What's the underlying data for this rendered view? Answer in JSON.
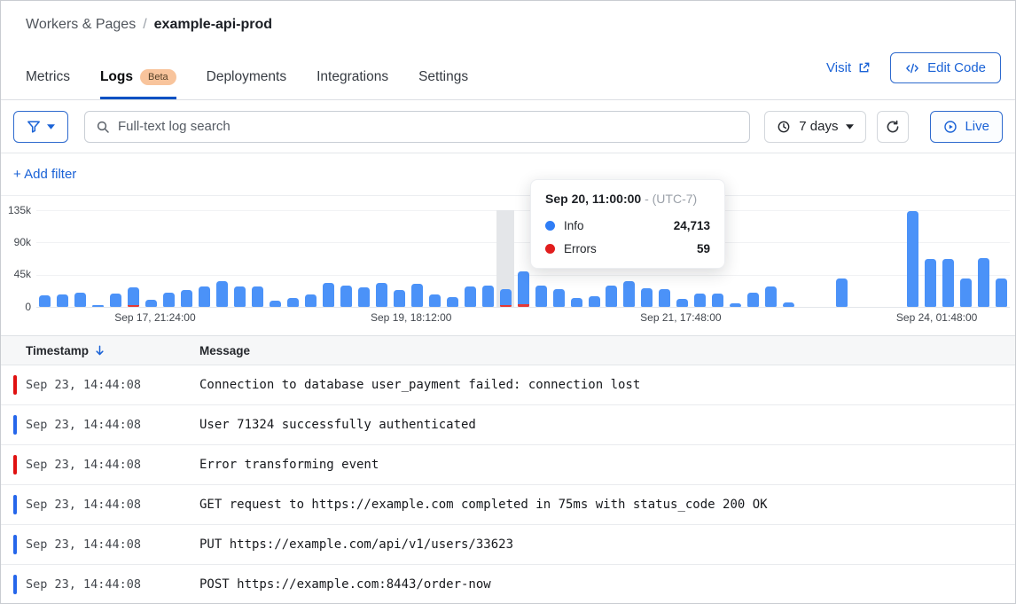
{
  "colors": {
    "accent": "#1a62d6",
    "tab_underline": "#0051c3",
    "bar_blue": "#4b92f8",
    "legend_info_blue": "#2f7df6",
    "error_red": "#e11d1d",
    "beta_badge_bg": "#f8c49c",
    "table_header_bg": "#f6f7f8"
  },
  "breadcrumb": {
    "section": "Workers & Pages",
    "separator": "/",
    "current": "example-api-prod"
  },
  "tabs": [
    {
      "label": "Metrics",
      "active": false
    },
    {
      "label": "Logs",
      "active": true,
      "badge": "Beta"
    },
    {
      "label": "Deployments",
      "active": false
    },
    {
      "label": "Integrations",
      "active": false
    },
    {
      "label": "Settings",
      "active": false
    }
  ],
  "header_actions": {
    "visit_label": "Visit",
    "edit_code_label": "Edit Code"
  },
  "toolbar": {
    "search_placeholder": "Full-text log search",
    "time_range_label": "7 days",
    "live_label": "Live"
  },
  "filters": {
    "add_filter_label": "+ Add filter"
  },
  "tooltip": {
    "title": "Sep 20, 11:00:00",
    "timezone_suffix": "- (UTC-7)",
    "entries": [
      {
        "label": "Info",
        "value": "24,713",
        "color": "#2f7df6"
      },
      {
        "label": "Errors",
        "value": "59",
        "color": "#e11d1d"
      }
    ]
  },
  "chart_data": {
    "type": "bar",
    "title": "Log events over time (7 days)",
    "series": [
      "Info",
      "Errors"
    ],
    "y_axis": {
      "ticks": [
        "135k",
        "90k",
        "45k",
        "0"
      ],
      "max": 135000
    },
    "x_axis": {
      "ticks": [
        {
          "label": "Sep 17, 21:24:00",
          "pos_pct": 12.2
        },
        {
          "label": "Sep 19, 18:12:00",
          "pos_pct": 38.5
        },
        {
          "label": "Sep 21, 17:48:00",
          "pos_pct": 66.2
        },
        {
          "label": "Sep 24, 01:48:00",
          "pos_pct": 92.5
        }
      ]
    },
    "values": [
      16000,
      17000,
      20000,
      3000,
      18000,
      27000,
      10000,
      20000,
      23000,
      28000,
      36000,
      29000,
      28000,
      9000,
      12000,
      17000,
      33000,
      30000,
      27000,
      33000,
      24000,
      32000,
      17000,
      14000,
      28000,
      30000,
      24713,
      50000,
      30000,
      25000,
      12000,
      15000,
      30000,
      36000,
      26000,
      25000,
      11000,
      18000,
      19000,
      5000,
      20000,
      28000,
      6000,
      0,
      0,
      40000,
      0,
      0,
      0,
      134000,
      67000,
      67000,
      40000,
      68000,
      40000
    ],
    "error_indices": [
      5,
      26,
      27
    ],
    "highlighted_index": 26,
    "highlighted_bucket": {
      "time": "Sep 20, 11:00:00",
      "utc_offset": "UTC-7",
      "info": 24713,
      "errors": 59
    }
  },
  "table": {
    "columns": [
      {
        "label": "Timestamp",
        "sort": "desc"
      },
      {
        "label": "Message"
      }
    ],
    "rows": [
      {
        "severity": "error",
        "timestamp": "Sep 23, 14:44:08",
        "message": "Connection to database user_payment failed: connection lost"
      },
      {
        "severity": "info",
        "timestamp": "Sep 23, 14:44:08",
        "message": "User 71324 successfully authenticated"
      },
      {
        "severity": "error",
        "timestamp": "Sep 23, 14:44:08",
        "message": "Error transforming event"
      },
      {
        "severity": "info",
        "timestamp": "Sep 23, 14:44:08",
        "message": "GET request to https://example.com completed in 75ms with status_code 200 OK"
      },
      {
        "severity": "info",
        "timestamp": "Sep 23, 14:44:08",
        "message": "PUT https://example.com/api/v1/users/33623"
      },
      {
        "severity": "info",
        "timestamp": "Sep 23, 14:44:08",
        "message": "POST https://example.com:8443/order-now"
      }
    ]
  }
}
